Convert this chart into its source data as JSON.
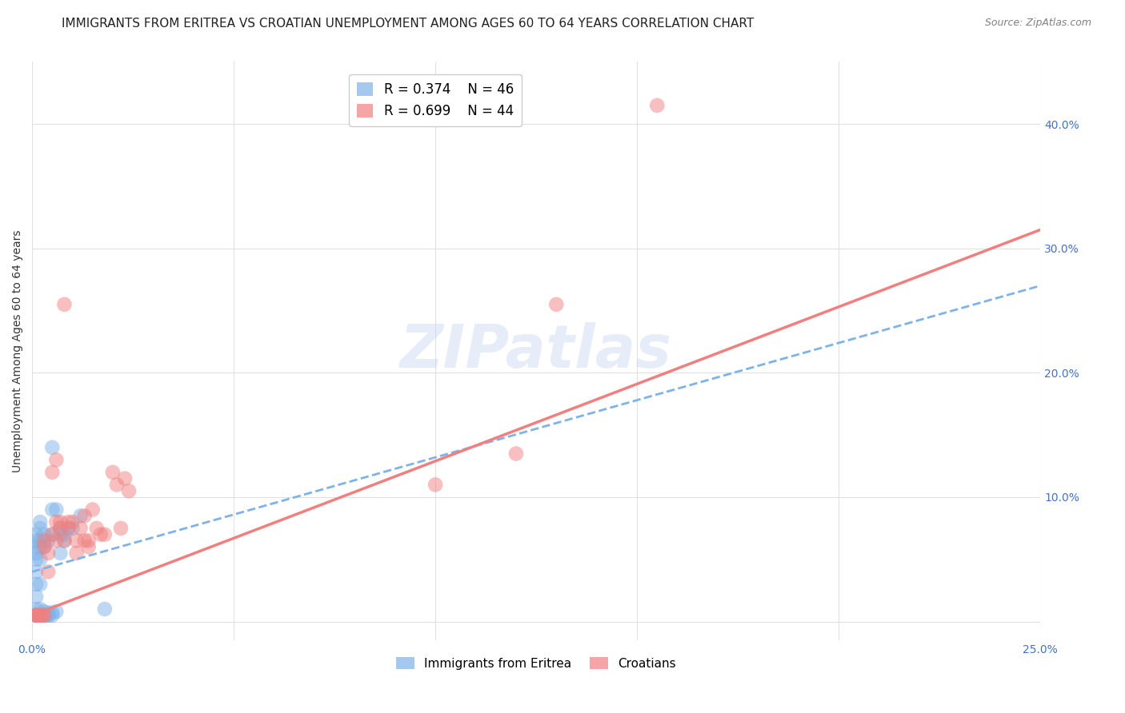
{
  "title": "IMMIGRANTS FROM ERITREA VS CROATIAN UNEMPLOYMENT AMONG AGES 60 TO 64 YEARS CORRELATION CHART",
  "source": "Source: ZipAtlas.com",
  "ylabel": "Unemployment Among Ages 60 to 64 years",
  "xlim": [
    0.0,
    0.25
  ],
  "ylim": [
    -0.015,
    0.45
  ],
  "xticks": [
    0.0,
    0.05,
    0.1,
    0.15,
    0.2,
    0.25
  ],
  "yticks": [
    0.0,
    0.1,
    0.2,
    0.3,
    0.4
  ],
  "background_color": "#ffffff",
  "grid_color": "#e0e0e0",
  "watermark": "ZIPatlas",
  "blue_color": "#7fb3e8",
  "pink_color": "#f08080",
  "axis_label_color": "#4472c4",
  "title_color": "#222222",
  "blue_scatter": [
    [
      0.001,
      0.005
    ],
    [
      0.001,
      0.005
    ],
    [
      0.001,
      0.005
    ],
    [
      0.001,
      0.01
    ],
    [
      0.001,
      0.02
    ],
    [
      0.001,
      0.03
    ],
    [
      0.001,
      0.04
    ],
    [
      0.001,
      0.05
    ],
    [
      0.001,
      0.055
    ],
    [
      0.001,
      0.06
    ],
    [
      0.001,
      0.065
    ],
    [
      0.001,
      0.07
    ],
    [
      0.002,
      0.005
    ],
    [
      0.002,
      0.005
    ],
    [
      0.002,
      0.01
    ],
    [
      0.002,
      0.03
    ],
    [
      0.002,
      0.05
    ],
    [
      0.002,
      0.06
    ],
    [
      0.002,
      0.065
    ],
    [
      0.002,
      0.075
    ],
    [
      0.002,
      0.08
    ],
    [
      0.003,
      0.005
    ],
    [
      0.003,
      0.005
    ],
    [
      0.003,
      0.008
    ],
    [
      0.003,
      0.06
    ],
    [
      0.003,
      0.07
    ],
    [
      0.004,
      0.005
    ],
    [
      0.004,
      0.005
    ],
    [
      0.004,
      0.007
    ],
    [
      0.004,
      0.065
    ],
    [
      0.005,
      0.005
    ],
    [
      0.005,
      0.007
    ],
    [
      0.005,
      0.07
    ],
    [
      0.005,
      0.09
    ],
    [
      0.005,
      0.14
    ],
    [
      0.006,
      0.008
    ],
    [
      0.006,
      0.09
    ],
    [
      0.007,
      0.055
    ],
    [
      0.007,
      0.07
    ],
    [
      0.007,
      0.075
    ],
    [
      0.008,
      0.065
    ],
    [
      0.008,
      0.07
    ],
    [
      0.009,
      0.075
    ],
    [
      0.01,
      0.075
    ],
    [
      0.012,
      0.085
    ],
    [
      0.018,
      0.01
    ]
  ],
  "pink_scatter": [
    [
      0.001,
      0.005
    ],
    [
      0.001,
      0.005
    ],
    [
      0.001,
      0.005
    ],
    [
      0.002,
      0.005
    ],
    [
      0.002,
      0.005
    ],
    [
      0.003,
      0.005
    ],
    [
      0.003,
      0.005
    ],
    [
      0.003,
      0.06
    ],
    [
      0.003,
      0.065
    ],
    [
      0.004,
      0.04
    ],
    [
      0.004,
      0.055
    ],
    [
      0.005,
      0.07
    ],
    [
      0.005,
      0.12
    ],
    [
      0.006,
      0.065
    ],
    [
      0.006,
      0.08
    ],
    [
      0.006,
      0.13
    ],
    [
      0.007,
      0.075
    ],
    [
      0.007,
      0.08
    ],
    [
      0.008,
      0.065
    ],
    [
      0.009,
      0.075
    ],
    [
      0.009,
      0.08
    ],
    [
      0.01,
      0.08
    ],
    [
      0.011,
      0.055
    ],
    [
      0.011,
      0.065
    ],
    [
      0.012,
      0.075
    ],
    [
      0.013,
      0.065
    ],
    [
      0.013,
      0.085
    ],
    [
      0.014,
      0.06
    ],
    [
      0.014,
      0.065
    ],
    [
      0.015,
      0.09
    ],
    [
      0.016,
      0.075
    ],
    [
      0.017,
      0.07
    ],
    [
      0.018,
      0.07
    ],
    [
      0.02,
      0.12
    ],
    [
      0.021,
      0.11
    ],
    [
      0.022,
      0.075
    ],
    [
      0.023,
      0.115
    ],
    [
      0.024,
      0.105
    ],
    [
      0.008,
      0.255
    ],
    [
      0.1,
      0.11
    ],
    [
      0.12,
      0.135
    ],
    [
      0.13,
      0.255
    ],
    [
      0.155,
      0.415
    ]
  ],
  "blue_line_x": [
    0.0,
    0.25
  ],
  "blue_line_y": [
    0.04,
    0.27
  ],
  "pink_line_x": [
    0.0,
    0.25
  ],
  "pink_line_y": [
    0.005,
    0.315
  ],
  "title_fontsize": 11,
  "axis_fontsize": 10,
  "tick_fontsize": 10,
  "legend_fontsize": 12
}
